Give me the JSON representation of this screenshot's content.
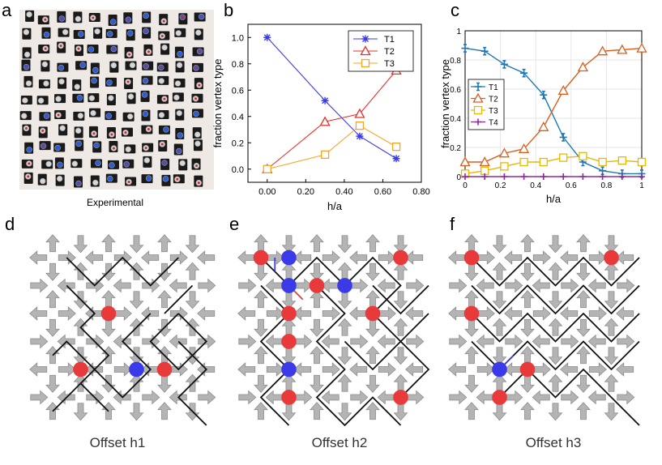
{
  "panel_labels": {
    "a": "a",
    "b": "b",
    "c": "c",
    "d": "d",
    "e": "e",
    "f": "f"
  },
  "panel_a": {
    "caption": "Experimental"
  },
  "panel_d": {
    "caption": "Offset h1"
  },
  "panel_e": {
    "caption": "Offset h2"
  },
  "panel_f": {
    "caption": "Offset h3"
  },
  "colors": {
    "blue_series": "#3a3ae8",
    "red_series": "#e8312a",
    "orange_series": "#f5a623",
    "c_t1": "#1f77b4",
    "c_t2": "#d95f1e",
    "c_t3": "#e8b800",
    "c_t4": "#8b2a9c",
    "arrow_fill": "#b4b4b4",
    "arrow_stroke": "#8c8c8c",
    "charge_red": "#e83a3a",
    "charge_blue": "#3a3ae8"
  },
  "chart_data": [
    {
      "id": "b",
      "type": "line",
      "xlabel": "h/a",
      "ylabel": "fraction vertex type",
      "xlim": [
        -0.1,
        0.8
      ],
      "ylim": [
        -0.1,
        1.1
      ],
      "xticks": [
        "0.00",
        "0.20",
        "0.40",
        "0.60",
        "0.80"
      ],
      "yticks": [
        "0.0",
        "0.2",
        "0.4",
        "0.6",
        "0.8",
        "1.0"
      ],
      "x": [
        0.0,
        0.3,
        0.48,
        0.67
      ],
      "legend_position": "top-right",
      "series": [
        {
          "name": "T1",
          "marker": "star",
          "values": [
            1.0,
            0.52,
            0.25,
            0.08
          ]
        },
        {
          "name": "T2",
          "marker": "triangle",
          "values": [
            0.0,
            0.36,
            0.42,
            0.75
          ]
        },
        {
          "name": "T3",
          "marker": "square",
          "values": [
            0.0,
            0.11,
            0.33,
            0.17
          ]
        }
      ]
    },
    {
      "id": "c",
      "type": "line",
      "xlabel": "h/a",
      "ylabel": "fraction vertex type",
      "xlim": [
        0,
        1
      ],
      "ylim": [
        0,
        1
      ],
      "xticks": [
        "0",
        "0.2",
        "0.4",
        "0.6",
        "0.8",
        "1"
      ],
      "yticks": [
        "0",
        "0.2",
        "0.4",
        "0.6",
        "0.8",
        "1"
      ],
      "x": [
        0,
        0.111,
        0.222,
        0.333,
        0.444,
        0.556,
        0.667,
        0.778,
        0.889,
        1.0
      ],
      "legend_position": "middle-left",
      "series": [
        {
          "name": "T1",
          "marker": "cross",
          "values": [
            0.88,
            0.86,
            0.77,
            0.71,
            0.56,
            0.27,
            0.1,
            0.04,
            0.02,
            0.02
          ]
        },
        {
          "name": "T2",
          "marker": "triangle",
          "values": [
            0.1,
            0.1,
            0.16,
            0.19,
            0.34,
            0.59,
            0.75,
            0.86,
            0.87,
            0.88
          ]
        },
        {
          "name": "T3",
          "marker": "square",
          "values": [
            0.02,
            0.04,
            0.07,
            0.1,
            0.1,
            0.13,
            0.14,
            0.1,
            0.11,
            0.1
          ]
        },
        {
          "name": "T4",
          "marker": "plus",
          "values": [
            0,
            0,
            0,
            0,
            0,
            0,
            0,
            0,
            0,
            0
          ]
        }
      ]
    }
  ]
}
